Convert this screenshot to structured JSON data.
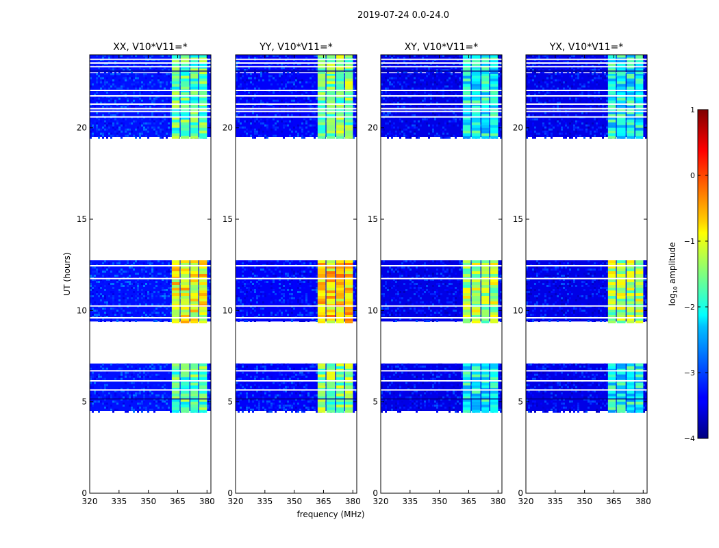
{
  "chart_data": {
    "type": "heatmap",
    "title": "2019-07-24 0.0-24.0",
    "xlabel": "frequency (MHz)",
    "ylabel": "UT (hours)",
    "xlim": [
      320,
      382
    ],
    "ylim": [
      0,
      24
    ],
    "xticks": [
      "320",
      "335",
      "350",
      "365",
      "380"
    ],
    "xtick_values": [
      320,
      335,
      350,
      365,
      380
    ],
    "yticks": [
      "0",
      "5",
      "10",
      "15",
      "20"
    ],
    "ytick_values": [
      0,
      5,
      10,
      15,
      20
    ],
    "colorbar": {
      "label": "log10 amplitude",
      "label_main": "log",
      "label_sub": "10",
      "label_tail": " amplitude",
      "min": -4,
      "max": 1,
      "ticks": [
        "1",
        "0",
        "−1",
        "−2",
        "−3",
        "−4"
      ],
      "tick_values": [
        1,
        0,
        -1,
        -2,
        -3,
        -4
      ],
      "colormap": "jet"
    },
    "data_time_blocks_hours": [
      [
        4.5,
        7.1
      ],
      [
        9.4,
        12.75
      ],
      [
        19.5,
        23.0
      ],
      [
        23.05,
        24.0
      ]
    ],
    "rfi_channels_mhz": [
      [
        362,
        366
      ],
      [
        366.5,
        371
      ],
      [
        371.5,
        375.5
      ],
      [
        376,
        380
      ]
    ],
    "panels": [
      {
        "title": "XX, V10*V11=*",
        "rfi_peak_log_amp": -0.6,
        "background_log_amp": -3.3
      },
      {
        "title": "YY, V10*V11=*",
        "rfi_peak_log_amp": -0.4,
        "background_log_amp": -3.4
      },
      {
        "title": "XY, V10*V11=*",
        "rfi_peak_log_amp": -1.0,
        "background_log_amp": -3.5
      },
      {
        "title": "YX, V10*V11=*",
        "rfi_peak_log_amp": -1.0,
        "background_log_amp": -3.5
      }
    ]
  }
}
